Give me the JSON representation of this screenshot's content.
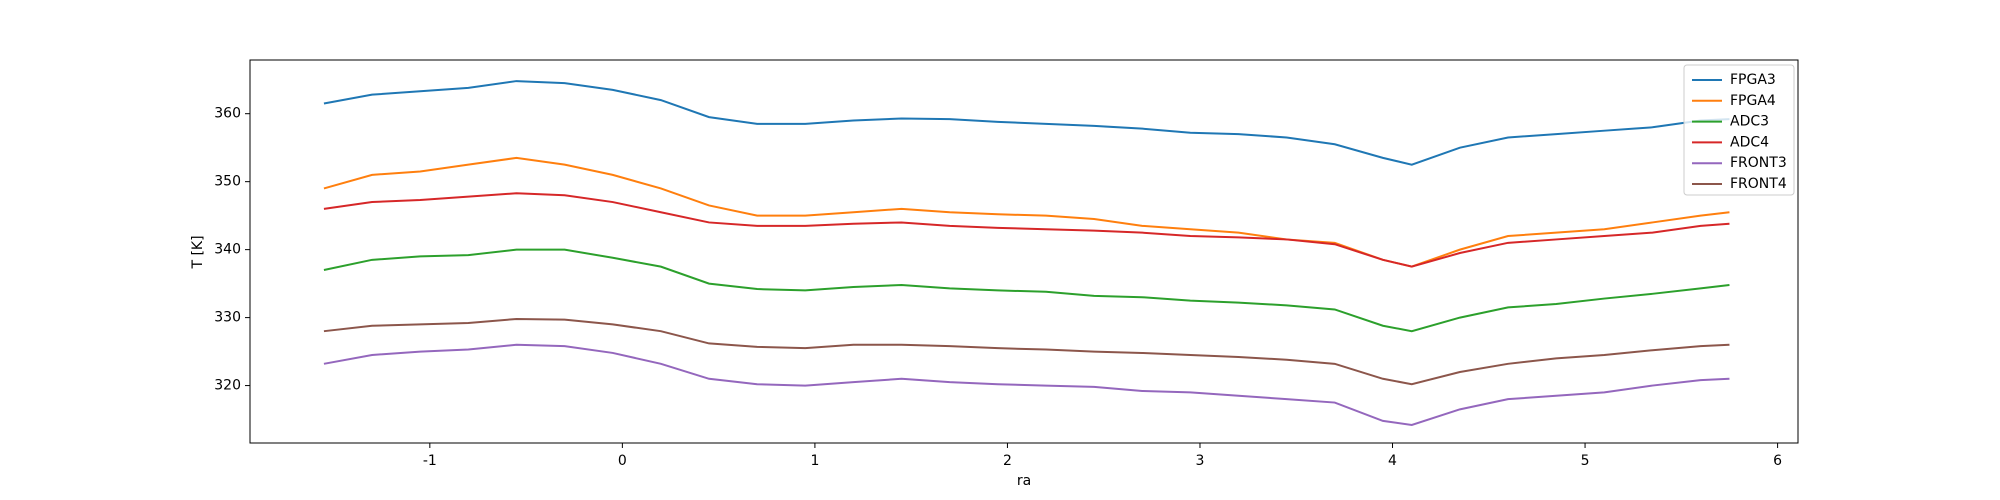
{
  "chart_data": {
    "type": "line",
    "xlabel": "ra",
    "ylabel": "T [K]",
    "x": [
      -1.55,
      -1.3,
      -1.05,
      -0.8,
      -0.55,
      -0.3,
      -0.05,
      0.2,
      0.45,
      0.7,
      0.95,
      1.2,
      1.45,
      1.7,
      1.95,
      2.2,
      2.45,
      2.7,
      2.95,
      3.2,
      3.45,
      3.7,
      3.95,
      4.1,
      4.35,
      4.6,
      4.85,
      5.1,
      5.35,
      5.6,
      5.75
    ],
    "series": [
      {
        "name": "FPGA3",
        "color": "#1f77b4",
        "values": [
          361.5,
          362.8,
          363.3,
          363.8,
          364.8,
          364.5,
          363.5,
          362,
          359.5,
          358.5,
          358.5,
          359,
          359.3,
          359.2,
          358.8,
          358.5,
          358.2,
          357.8,
          357.2,
          357,
          356.5,
          355.5,
          353.5,
          352.5,
          355,
          356.5,
          357,
          357.5,
          358,
          359,
          359.2
        ]
      },
      {
        "name": "FPGA4",
        "color": "#ff7f0e",
        "values": [
          349,
          351,
          351.5,
          352.5,
          353.5,
          352.5,
          351,
          349,
          346.5,
          345,
          345,
          345.5,
          346,
          345.5,
          345.2,
          345,
          344.5,
          343.5,
          343,
          342.5,
          341.5,
          341,
          338.5,
          337.5,
          340,
          342,
          342.5,
          343,
          344,
          345,
          345.5
        ]
      },
      {
        "name": "ADC3",
        "color": "#2ca02c",
        "values": [
          337,
          338.5,
          339,
          339.2,
          340,
          340,
          338.8,
          337.5,
          335,
          334.2,
          334,
          334.5,
          334.8,
          334.3,
          334,
          333.8,
          333.2,
          333,
          332.5,
          332.2,
          331.8,
          331.2,
          328.8,
          328,
          330,
          331.5,
          332,
          332.8,
          333.5,
          334.3,
          334.8
        ]
      },
      {
        "name": "ADC4",
        "color": "#d62728",
        "values": [
          346,
          347,
          347.3,
          347.8,
          348.3,
          348,
          347,
          345.5,
          344,
          343.5,
          343.5,
          343.8,
          344,
          343.5,
          343.2,
          343,
          342.8,
          342.5,
          342,
          341.8,
          341.5,
          340.8,
          338.5,
          337.5,
          339.5,
          341,
          341.5,
          342,
          342.5,
          343.5,
          343.8
        ]
      },
      {
        "name": "FRONT3",
        "color": "#9467bd",
        "values": [
          323.2,
          324.5,
          325,
          325.3,
          326,
          325.8,
          324.8,
          323.2,
          321,
          320.2,
          320,
          320.5,
          321,
          320.5,
          320.2,
          320,
          319.8,
          319.2,
          319,
          318.5,
          318,
          317.5,
          314.8,
          314.2,
          316.5,
          318,
          318.5,
          319,
          320,
          320.8,
          321
        ]
      },
      {
        "name": "FRONT4",
        "color": "#8c564b",
        "values": [
          328,
          328.8,
          329,
          329.2,
          329.8,
          329.7,
          329,
          328,
          326.2,
          325.7,
          325.5,
          326,
          326,
          325.8,
          325.5,
          325.3,
          325,
          324.8,
          324.5,
          324.2,
          323.8,
          323.2,
          321,
          320.2,
          322,
          323.2,
          324,
          324.5,
          325.2,
          325.8,
          326
        ]
      }
    ],
    "xlim": [
      -1.934,
      6.106
    ],
    "xticks": [
      -1,
      0,
      1,
      2,
      3,
      4,
      5,
      6
    ],
    "ylim": [
      311.55,
      367.9
    ],
    "yticks": [
      320,
      330,
      340,
      350,
      360
    ],
    "legend": "upper right"
  }
}
